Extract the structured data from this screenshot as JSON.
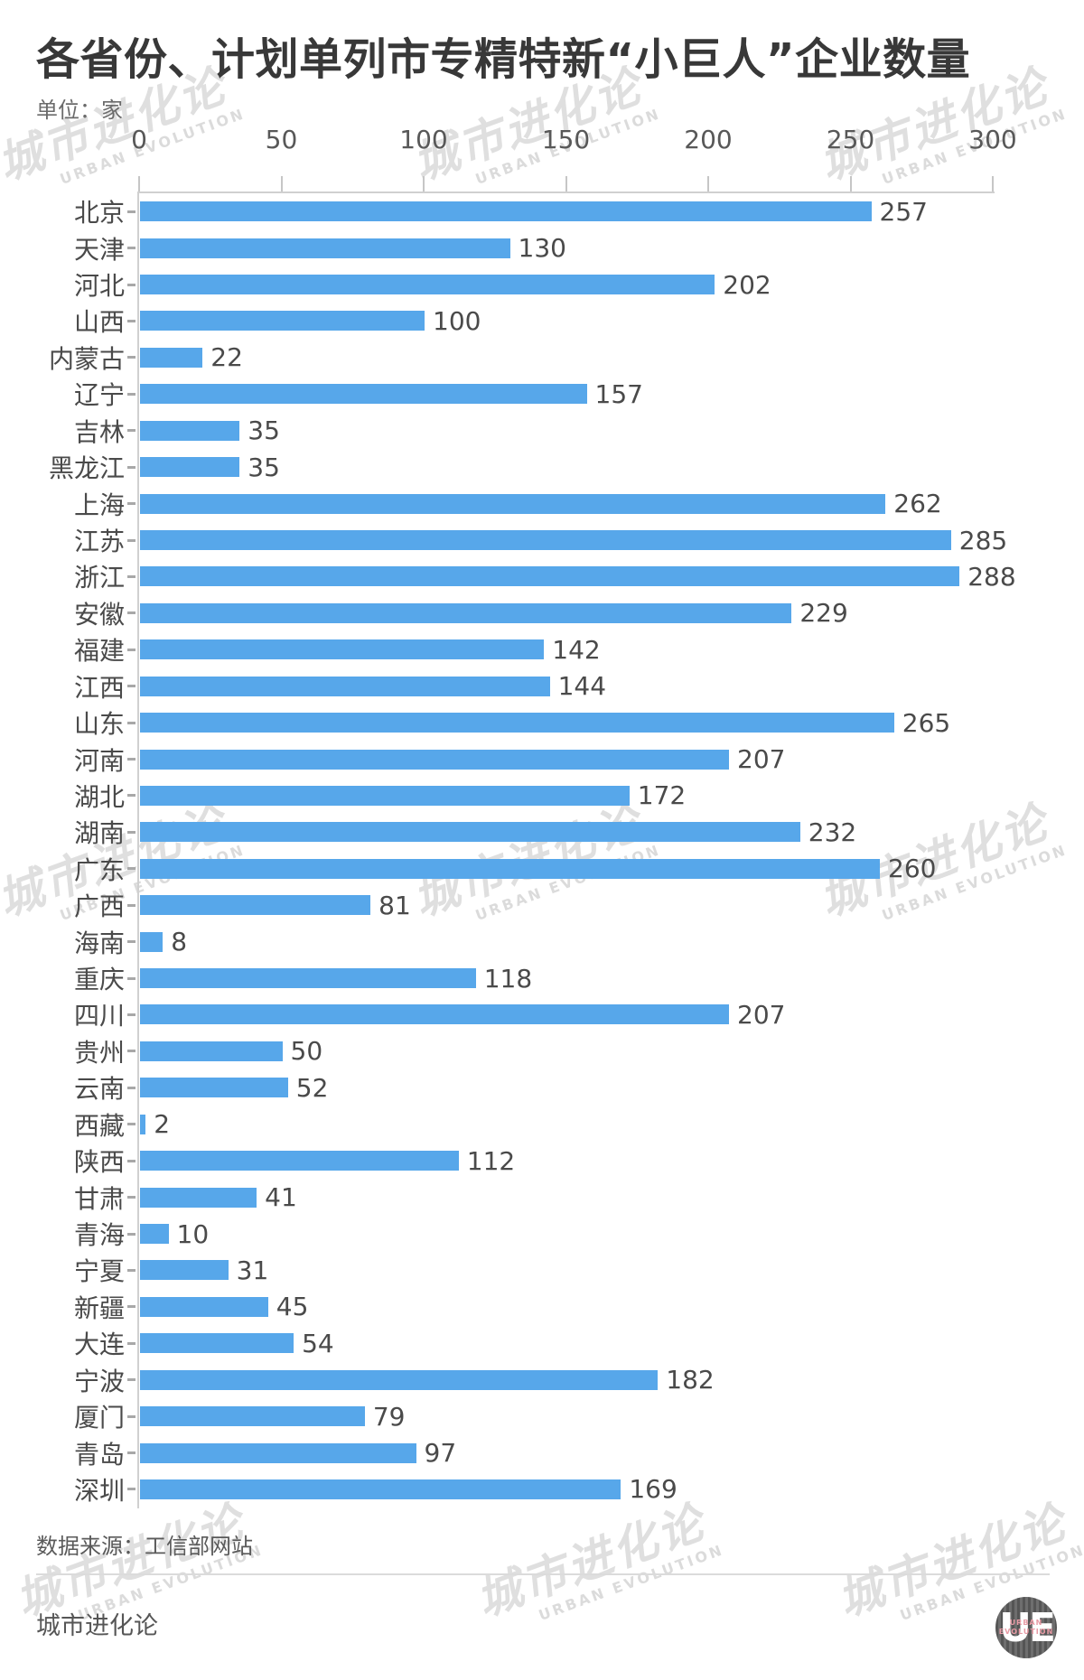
{
  "title": "各省份、计划单列市专精特新“小巨人”企业数量",
  "unit_label": "单位：家",
  "source_label": "数据来源：工信部网站",
  "footer_brand": "城市进化论",
  "watermark": {
    "cn": "城市进化论",
    "en": "URBAN EVOLUTION"
  },
  "logo": {
    "monogram": "UE",
    "line1": "URBAN",
    "line2": "EVOLUTION"
  },
  "colors": {
    "bar": "#57A7EA",
    "title_text": "#383838",
    "label_text": "#4a4a4a",
    "axis_line": "#d0d0d0"
  },
  "chart_data": {
    "type": "bar",
    "orientation": "horizontal",
    "title": "各省份、计划单列市专精特新“小巨人”企业数量",
    "unit": "家",
    "xlim": [
      0,
      300
    ],
    "x_ticks": [
      0,
      50,
      100,
      150,
      200,
      250,
      300
    ],
    "grid": false,
    "categories": [
      "北京",
      "天津",
      "河北",
      "山西",
      "内蒙古",
      "辽宁",
      "吉林",
      "黑龙江",
      "上海",
      "江苏",
      "浙江",
      "安徽",
      "福建",
      "江西",
      "山东",
      "河南",
      "湖北",
      "湖南",
      "广东",
      "广西",
      "海南",
      "重庆",
      "四川",
      "贵州",
      "云南",
      "西藏",
      "陕西",
      "甘肃",
      "青海",
      "宁夏",
      "新疆",
      "大连",
      "宁波",
      "厦门",
      "青岛",
      "深圳"
    ],
    "values": [
      257,
      130,
      202,
      100,
      22,
      157,
      35,
      35,
      262,
      285,
      288,
      229,
      142,
      144,
      265,
      207,
      172,
      232,
      260,
      81,
      8,
      118,
      207,
      50,
      52,
      2,
      112,
      41,
      10,
      31,
      45,
      54,
      182,
      79,
      97,
      169
    ]
  }
}
